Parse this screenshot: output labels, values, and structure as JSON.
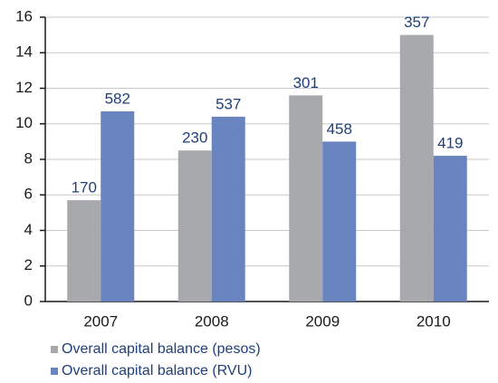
{
  "chart_data": {
    "type": "bar",
    "categories": [
      "2007",
      "2008",
      "2009",
      "2010"
    ],
    "series": [
      {
        "name": "Overall capital balance (pesos)",
        "color": "#a7a9ac",
        "values": [
          5.7,
          8.5,
          11.6,
          15.0
        ],
        "data_labels": [
          170,
          230,
          301,
          357
        ]
      },
      {
        "name": "Overall capital balance (RVU)",
        "color": "#6a84c0",
        "values": [
          10.7,
          10.4,
          9.0,
          8.2
        ],
        "data_labels": [
          582,
          537,
          458,
          419
        ]
      }
    ],
    "ylim": [
      0,
      16
    ],
    "yticks": [
      0,
      2,
      4,
      6,
      8,
      10,
      12,
      14,
      16
    ],
    "grid": true,
    "legend": "bottom"
  }
}
